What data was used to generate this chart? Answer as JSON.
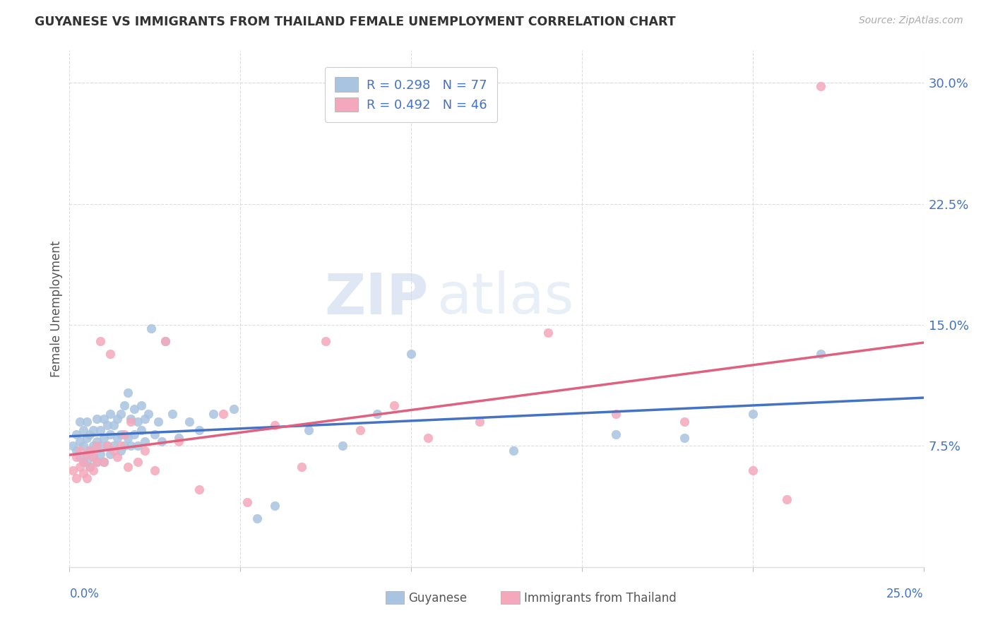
{
  "title": "GUYANESE VS IMMIGRANTS FROM THAILAND FEMALE UNEMPLOYMENT CORRELATION CHART",
  "source": "Source: ZipAtlas.com",
  "ylabel": "Female Unemployment",
  "ytick_labels": [
    "7.5%",
    "15.0%",
    "22.5%",
    "30.0%"
  ],
  "ytick_values": [
    0.075,
    0.15,
    0.225,
    0.3
  ],
  "xmin": 0.0,
  "xmax": 0.25,
  "ymin": 0.0,
  "ymax": 0.32,
  "legend_label1": "Guyanese",
  "legend_label2": "Immigrants from Thailand",
  "watermark_zip": "ZIP",
  "watermark_atlas": "atlas",
  "blue_color": "#a8c4e0",
  "pink_color": "#f4a8bb",
  "blue_line_color": "#4472c4",
  "pink_line_color": "#e06080",
  "guyanese_x": [
    0.001,
    0.002,
    0.002,
    0.003,
    0.003,
    0.003,
    0.004,
    0.004,
    0.004,
    0.005,
    0.005,
    0.005,
    0.005,
    0.006,
    0.006,
    0.006,
    0.007,
    0.007,
    0.007,
    0.008,
    0.008,
    0.008,
    0.009,
    0.009,
    0.009,
    0.01,
    0.01,
    0.01,
    0.011,
    0.011,
    0.012,
    0.012,
    0.012,
    0.013,
    0.013,
    0.014,
    0.014,
    0.015,
    0.015,
    0.015,
    0.016,
    0.016,
    0.017,
    0.017,
    0.018,
    0.018,
    0.019,
    0.019,
    0.02,
    0.02,
    0.021,
    0.021,
    0.022,
    0.022,
    0.023,
    0.024,
    0.025,
    0.026,
    0.027,
    0.028,
    0.03,
    0.032,
    0.035,
    0.038,
    0.042,
    0.048,
    0.055,
    0.06,
    0.07,
    0.08,
    0.09,
    0.1,
    0.13,
    0.16,
    0.18,
    0.2,
    0.22
  ],
  "guyanese_y": [
    0.075,
    0.072,
    0.082,
    0.068,
    0.078,
    0.09,
    0.065,
    0.075,
    0.085,
    0.07,
    0.08,
    0.065,
    0.09,
    0.072,
    0.082,
    0.062,
    0.075,
    0.085,
    0.068,
    0.078,
    0.092,
    0.065,
    0.075,
    0.085,
    0.07,
    0.08,
    0.092,
    0.065,
    0.088,
    0.075,
    0.082,
    0.095,
    0.07,
    0.088,
    0.075,
    0.092,
    0.08,
    0.072,
    0.095,
    0.082,
    0.1,
    0.075,
    0.108,
    0.08,
    0.092,
    0.075,
    0.098,
    0.082,
    0.09,
    0.075,
    0.1,
    0.085,
    0.092,
    0.078,
    0.095,
    0.148,
    0.082,
    0.09,
    0.078,
    0.14,
    0.095,
    0.08,
    0.09,
    0.085,
    0.095,
    0.098,
    0.03,
    0.038,
    0.085,
    0.075,
    0.095,
    0.132,
    0.072,
    0.082,
    0.08,
    0.095,
    0.132
  ],
  "thailand_x": [
    0.001,
    0.002,
    0.002,
    0.003,
    0.003,
    0.004,
    0.004,
    0.005,
    0.005,
    0.006,
    0.006,
    0.007,
    0.007,
    0.008,
    0.008,
    0.009,
    0.01,
    0.011,
    0.012,
    0.013,
    0.014,
    0.015,
    0.016,
    0.017,
    0.018,
    0.02,
    0.022,
    0.025,
    0.028,
    0.032,
    0.038,
    0.045,
    0.052,
    0.06,
    0.068,
    0.075,
    0.085,
    0.095,
    0.105,
    0.12,
    0.14,
    0.16,
    0.18,
    0.2,
    0.21,
    0.22
  ],
  "thailand_y": [
    0.06,
    0.055,
    0.068,
    0.062,
    0.072,
    0.058,
    0.065,
    0.055,
    0.07,
    0.062,
    0.072,
    0.06,
    0.068,
    0.065,
    0.075,
    0.14,
    0.065,
    0.075,
    0.132,
    0.072,
    0.068,
    0.075,
    0.082,
    0.062,
    0.09,
    0.065,
    0.072,
    0.06,
    0.14,
    0.078,
    0.048,
    0.095,
    0.04,
    0.088,
    0.062,
    0.14,
    0.085,
    0.1,
    0.08,
    0.09,
    0.145,
    0.095,
    0.09,
    0.06,
    0.042,
    0.298
  ]
}
